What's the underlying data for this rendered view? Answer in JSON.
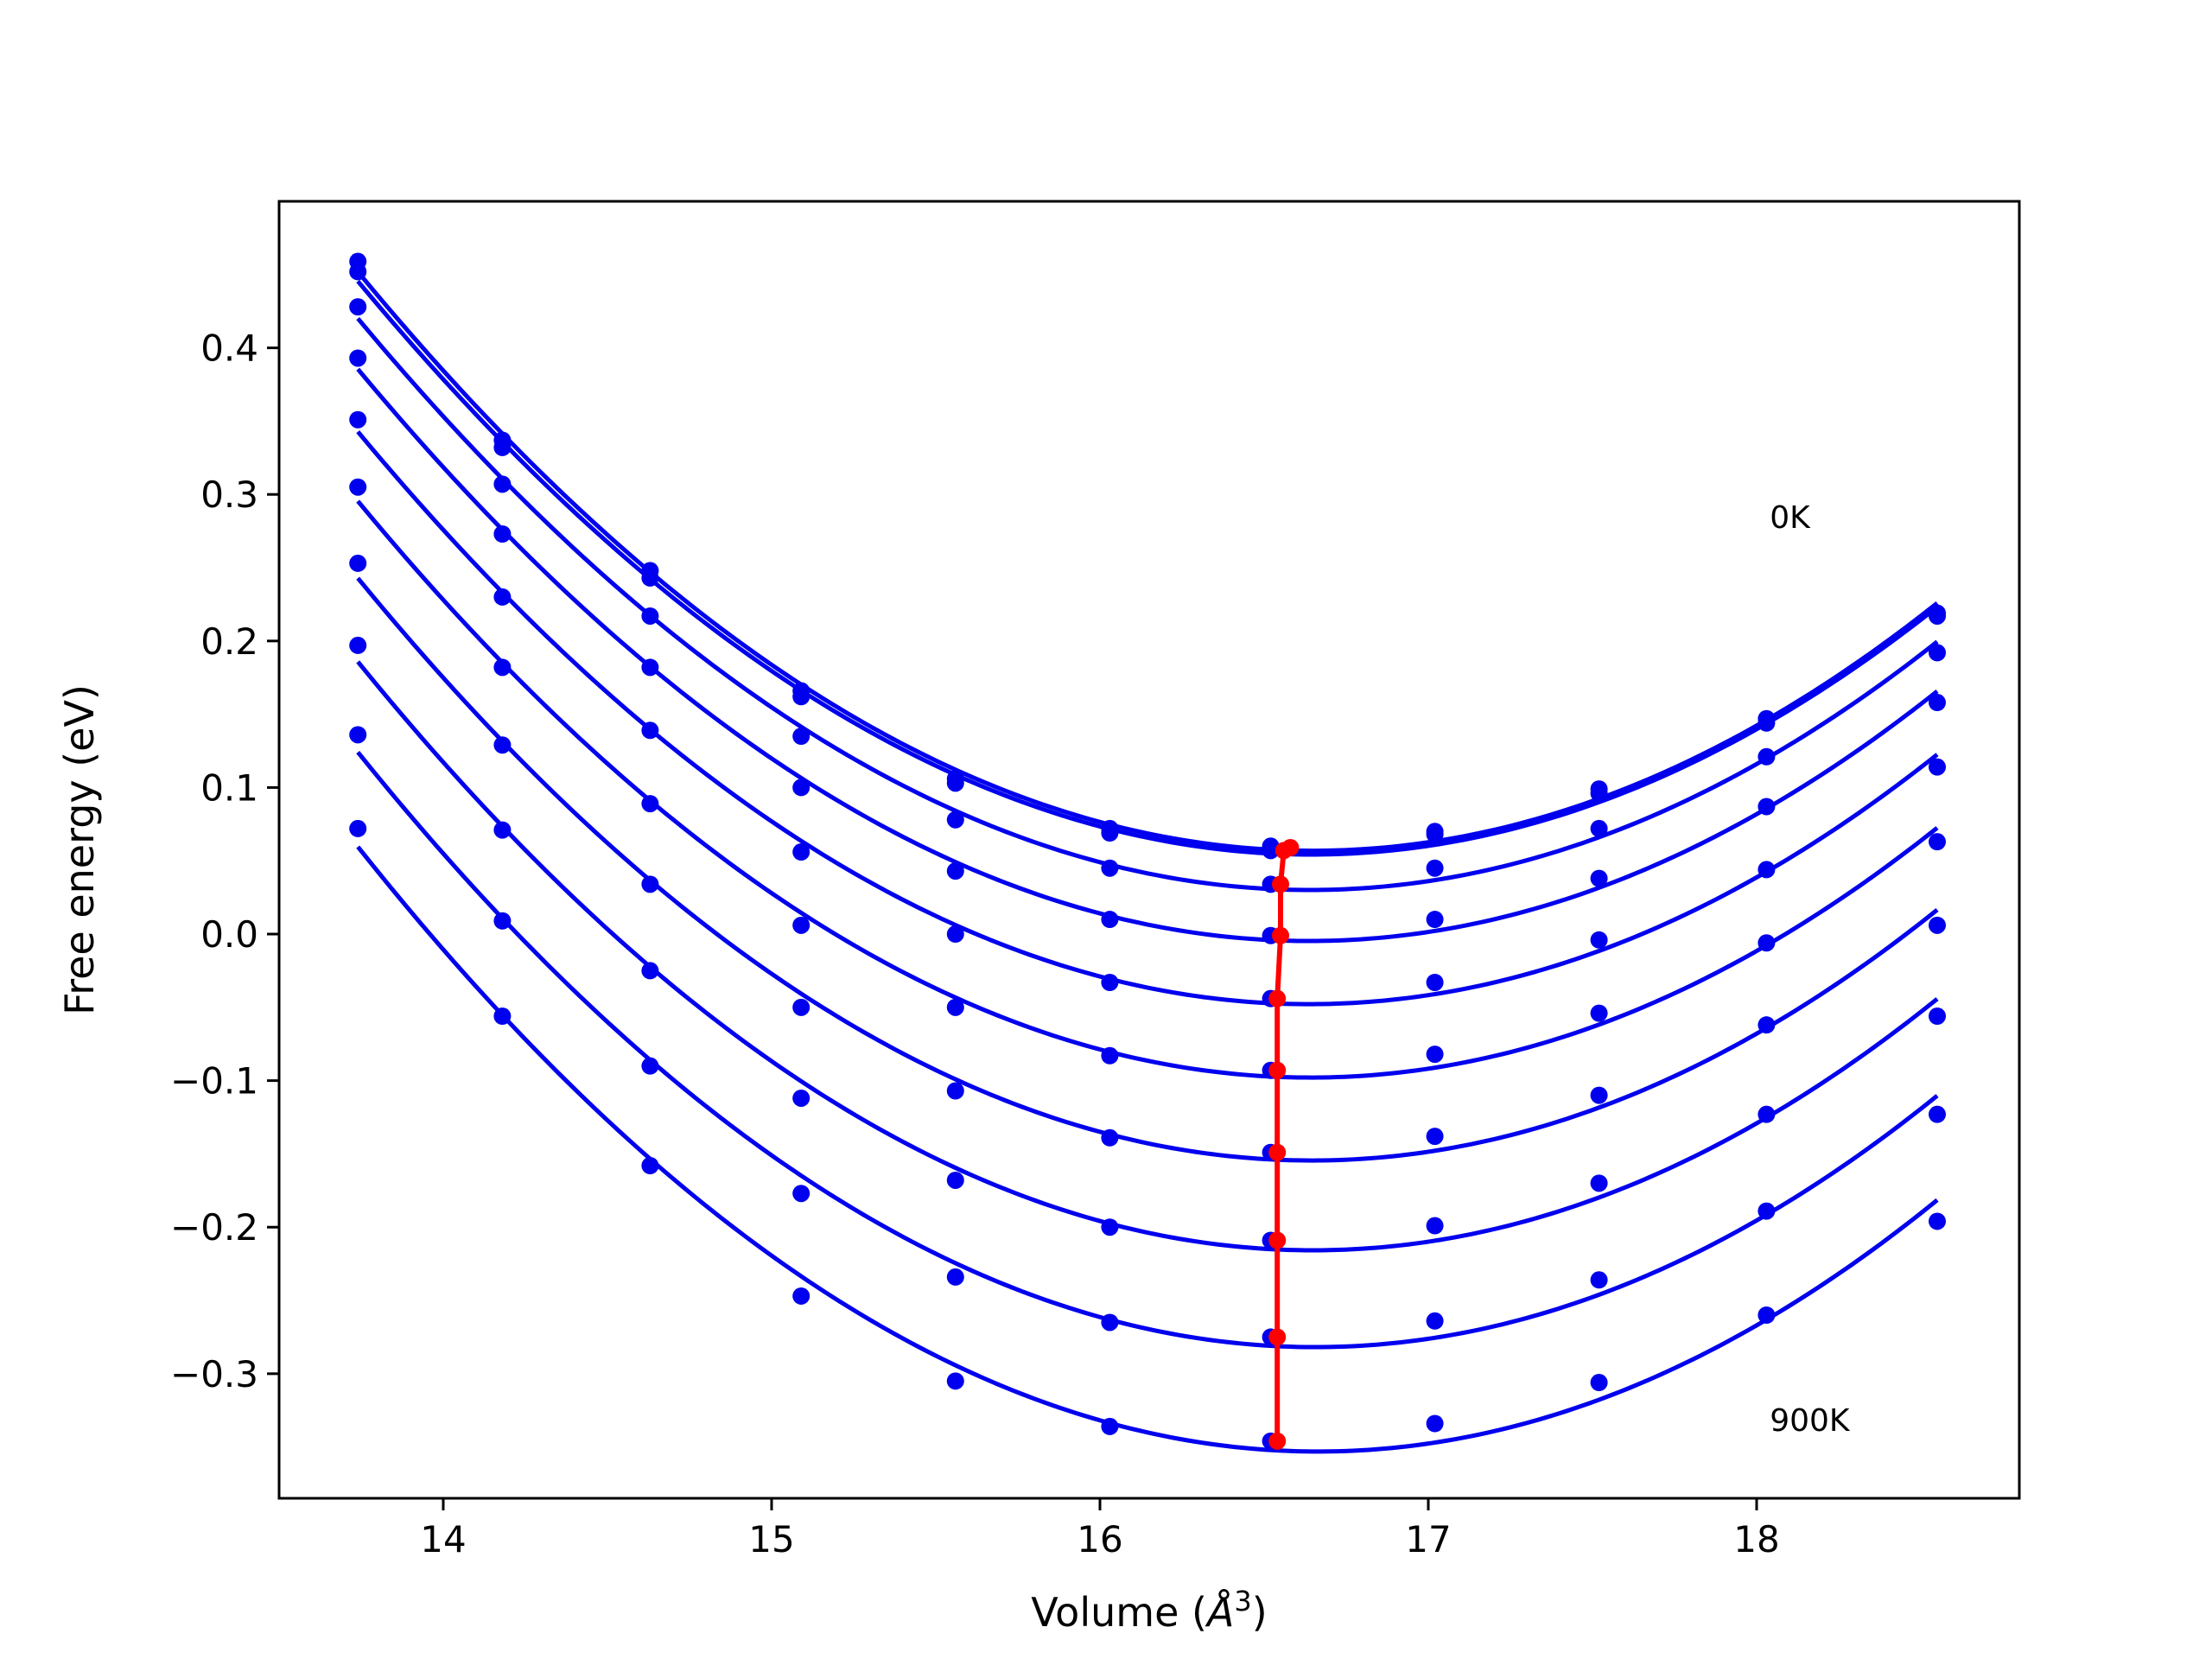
{
  "chart_data": {
    "type": "line",
    "title": "",
    "xlabel": "Volume (",
    "xlabel_symbol": "Å",
    "xlabel_exp": "3",
    "xlabel_close": ")",
    "ylabel": "Free energy (eV)",
    "xlim": [
      13.5,
      18.8
    ],
    "ylim": [
      -0.385,
      0.5
    ],
    "xticks": [
      14,
      15,
      16,
      17,
      18
    ],
    "xtick_labels": [
      "14",
      "15",
      "16",
      "17",
      "18"
    ],
    "yticks": [
      -0.3,
      -0.2,
      -0.1,
      0.0,
      0.1,
      0.2,
      0.3,
      0.4
    ],
    "ytick_labels": [
      "−0.3",
      "−0.2",
      "−0.1",
      "0.0",
      "0.1",
      "0.2",
      "0.3",
      "0.4"
    ],
    "grid": false,
    "x": [
      13.74,
      14.18,
      14.63,
      15.09,
      15.56,
      16.03,
      16.52,
      17.02,
      17.52,
      18.03,
      18.55
    ],
    "series": [
      {
        "values": [
          0.459,
          0.337,
          0.248,
          0.166,
          0.106,
          0.072,
          0.06,
          0.07,
          0.099,
          0.147,
          0.219
        ]
      },
      {
        "values": [
          0.452,
          0.332,
          0.243,
          0.162,
          0.103,
          0.069,
          0.057,
          0.068,
          0.096,
          0.144,
          0.217
        ]
      },
      {
        "values": [
          0.428,
          0.307,
          0.217,
          0.135,
          0.078,
          0.045,
          0.034,
          0.045,
          0.072,
          0.121,
          0.192
        ]
      },
      {
        "values": [
          0.393,
          0.273,
          0.182,
          0.1,
          0.043,
          0.01,
          -0.001,
          0.01,
          0.038,
          0.087,
          0.158
        ]
      },
      {
        "values": [
          0.351,
          0.23,
          0.139,
          0.056,
          0.0,
          -0.033,
          -0.044,
          -0.033,
          -0.004,
          0.044,
          0.114
        ]
      },
      {
        "values": [
          0.305,
          0.182,
          0.089,
          0.006,
          -0.05,
          -0.083,
          -0.093,
          -0.082,
          -0.054,
          -0.006,
          0.063
        ]
      },
      {
        "values": [
          0.253,
          0.129,
          0.034,
          -0.05,
          -0.107,
          -0.139,
          -0.149,
          -0.138,
          -0.11,
          -0.062,
          0.006
        ]
      },
      {
        "values": [
          0.197,
          0.071,
          -0.025,
          -0.112,
          -0.168,
          -0.2,
          -0.209,
          -0.199,
          -0.17,
          -0.123,
          -0.056
        ]
      },
      {
        "values": [
          0.136,
          0.009,
          -0.09,
          -0.177,
          -0.234,
          -0.265,
          -0.275,
          -0.264,
          -0.236,
          -0.189,
          -0.123
        ]
      },
      {
        "values": [
          0.072,
          -0.056,
          -0.158,
          -0.247,
          -0.305,
          -0.336,
          -0.346,
          -0.334,
          -0.306,
          -0.26,
          -0.196
        ]
      }
    ],
    "minima": {
      "x": [
        16.58,
        16.56,
        16.55,
        16.55,
        16.54,
        16.54,
        16.54,
        16.54,
        16.54,
        16.54
      ],
      "y": [
        0.059,
        0.057,
        0.034,
        -0.001,
        -0.044,
        -0.093,
        -0.149,
        -0.209,
        -0.275,
        -0.346
      ]
    },
    "annotations": [
      {
        "text": "0K",
        "x": 18.04,
        "y": 0.277
      },
      {
        "text": "900K",
        "x": 18.04,
        "y": -0.339
      }
    ],
    "colors": {
      "curves": "#0000ee",
      "minima": "#ff0000",
      "axes": "#000000"
    }
  }
}
